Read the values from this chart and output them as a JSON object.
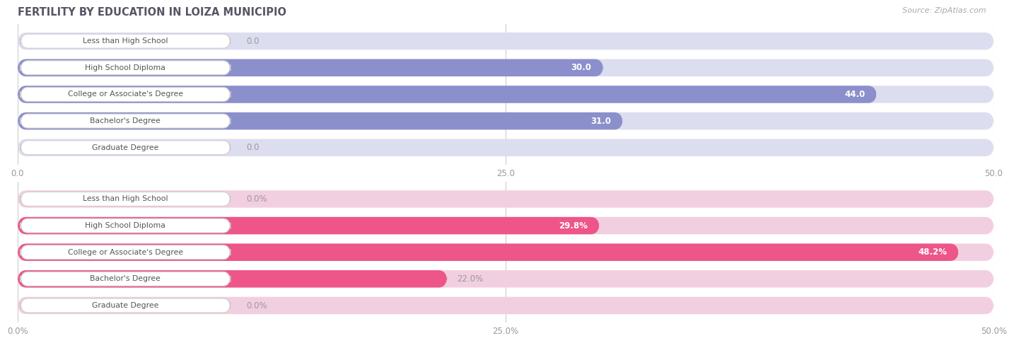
{
  "title": "FERTILITY BY EDUCATION IN LOIZA MUNICIPIO",
  "source_text": "Source: ZipAtlas.com",
  "top_section": {
    "categories": [
      "Less than High School",
      "High School Diploma",
      "College or Associate's Degree",
      "Bachelor's Degree",
      "Graduate Degree"
    ],
    "values": [
      0.0,
      30.0,
      44.0,
      31.0,
      0.0
    ],
    "xlim": [
      0,
      50
    ],
    "xticks": [
      0.0,
      25.0,
      50.0
    ],
    "xtick_labels": [
      "0.0",
      "25.0",
      "50.0"
    ],
    "bar_color": "#8b8fcc",
    "bar_bg_color": "#ddddf0",
    "value_label_inside_color": "#ffffff",
    "value_label_outside_color": "#999999"
  },
  "bottom_section": {
    "categories": [
      "Less than High School",
      "High School Diploma",
      "College or Associate's Degree",
      "Bachelor's Degree",
      "Graduate Degree"
    ],
    "values": [
      0.0,
      29.8,
      48.2,
      22.0,
      0.0
    ],
    "value_labels": [
      "0.0%",
      "29.8%",
      "48.2%",
      "22.0%",
      "0.0%"
    ],
    "xlim": [
      0,
      50
    ],
    "xticks": [
      0.0,
      25.0,
      50.0
    ],
    "xtick_labels": [
      "0.0%",
      "25.0%",
      "50.0%"
    ],
    "bar_color": "#ee5588",
    "bar_bg_color": "#f2cfe0",
    "value_label_inside_color": "#ffffff",
    "value_label_outside_color": "#999999"
  },
  "label_text_color": "#555555",
  "label_box_color": "#ffffff",
  "label_box_edge_color": "#cccccc",
  "background_color": "#ffffff",
  "grid_color": "#cccccc",
  "fig_width": 14.06,
  "fig_height": 4.75
}
